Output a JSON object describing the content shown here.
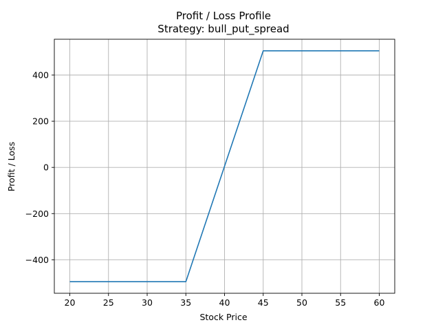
{
  "chart_data": {
    "type": "line",
    "title": "Profit / Loss Profile",
    "subtitle": "Strategy: bull_put_spread",
    "xlabel": "Stock Price",
    "ylabel": "Profit / Loss",
    "xlim": [
      18,
      62
    ],
    "ylim": [
      -545,
      555
    ],
    "grid": true,
    "x_ticks": [
      20,
      25,
      30,
      35,
      40,
      45,
      50,
      55,
      60
    ],
    "x_tick_labels": [
      "20",
      "25",
      "30",
      "35",
      "40",
      "45",
      "50",
      "55",
      "60"
    ],
    "y_ticks": [
      -400,
      -200,
      0,
      200,
      400
    ],
    "y_tick_labels": [
      "−400",
      "−200",
      "0",
      "200",
      "400"
    ],
    "series": [
      {
        "color": "#1f77b4",
        "x": [
          20,
          35,
          45,
          60
        ],
        "y": [
          -495,
          -495,
          505,
          505
        ]
      }
    ]
  }
}
